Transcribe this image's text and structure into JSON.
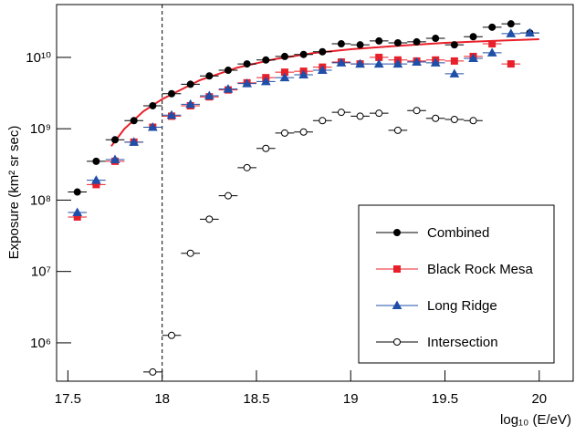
{
  "chart_data": {
    "type": "scatter",
    "y_label": "Exposure (km² sr sec)",
    "x_label": "log₁₀ (E/eV)",
    "xlim": [
      17.44,
      20.18
    ],
    "ylim": [
      290000,
      55000000000
    ],
    "log_y": true,
    "xticks": [
      {
        "value": 17.5,
        "label": "17.5"
      },
      18,
      {
        "value": 18.5,
        "label": "18.5"
      },
      19,
      {
        "value": 19.5,
        "label": "19.5"
      },
      20
    ],
    "yticks": [
      {
        "value": 1000000,
        "label": "10⁶"
      },
      {
        "value": 10000000,
        "label": "10⁷"
      },
      {
        "value": 100000000,
        "label": "10⁸"
      },
      {
        "value": 1000000000,
        "label": "10⁹"
      },
      {
        "value": 10000000000,
        "label": "10¹⁰"
      }
    ],
    "vline": 18,
    "xerr": 0.05,
    "series": [
      {
        "name": "Combined",
        "color": "#000000",
        "marker": "circle",
        "filled": true,
        "x": [
          17.55,
          17.65,
          17.75,
          17.85,
          17.95,
          18.05,
          18.15,
          18.25,
          18.35,
          18.45,
          18.55,
          18.65,
          18.75,
          18.85,
          18.95,
          19.05,
          19.15,
          19.25,
          19.35,
          19.45,
          19.55,
          19.65,
          19.75,
          19.85,
          19.95
        ],
        "values": [
          130000000,
          350000000,
          700000000,
          1300000000,
          2100000000,
          3100000000,
          4200000000,
          5500000000,
          6600000000,
          8100000000,
          9200000000,
          10300000000,
          11000000000,
          12000000000,
          15500000000,
          15000000000,
          17000000000,
          16000000000,
          16500000000,
          18500000000,
          15000000000,
          19500000000,
          26500000000,
          29500000000,
          22000000000
        ]
      },
      {
        "name": "Black Rock Mesa",
        "color": "#e8202a",
        "marker": "square",
        "filled": true,
        "x": [
          17.55,
          17.65,
          17.75,
          17.85,
          17.95,
          18.05,
          18.15,
          18.25,
          18.35,
          18.45,
          18.55,
          18.65,
          18.75,
          18.85,
          18.95,
          19.05,
          19.15,
          19.25,
          19.35,
          19.45,
          19.55,
          19.65,
          19.75,
          19.85
        ],
        "values": [
          58000000,
          165000000,
          350000000,
          650000000,
          1050000000,
          1500000000,
          2100000000,
          2800000000,
          3500000000,
          4400000000,
          5200000000,
          6200000000,
          6400000000,
          7300000000,
          8600000000,
          8100000000,
          10000000000,
          9200000000,
          8900000000,
          9200000000,
          8900000000,
          10300000000,
          15500000000,
          8100000000
        ]
      },
      {
        "name": "Long Ridge",
        "color": "#1f4fa8",
        "marker": "triangle",
        "filled": true,
        "x": [
          17.55,
          17.65,
          17.75,
          17.85,
          17.95,
          18.05,
          18.15,
          18.25,
          18.35,
          18.45,
          18.55,
          18.65,
          18.75,
          18.85,
          18.95,
          19.05,
          19.15,
          19.25,
          19.35,
          19.45,
          19.55,
          19.65,
          19.75,
          19.85,
          19.95
        ],
        "values": [
          67000000,
          190000000,
          370000000,
          650000000,
          1050000000,
          1550000000,
          2200000000,
          2900000000,
          3600000000,
          4300000000,
          4600000000,
          5200000000,
          5700000000,
          6600000000,
          8400000000,
          8100000000,
          8100000000,
          8100000000,
          8600000000,
          8400000000,
          5900000000,
          9700000000,
          11600000000,
          21500000000,
          22000000000
        ]
      },
      {
        "name": "Intersection",
        "color": "#000000",
        "marker": "circle",
        "filled": false,
        "x": [
          17.95,
          18.05,
          18.15,
          18.25,
          18.35,
          18.45,
          18.55,
          18.65,
          18.75,
          18.85,
          18.95,
          19.05,
          19.15,
          19.25,
          19.35,
          19.45,
          19.55,
          19.65
        ],
        "values": [
          390000,
          1270000,
          18000000,
          54000000,
          115000000,
          285000000,
          530000000,
          870000000,
          900000000,
          1300000000,
          1700000000,
          1500000000,
          1650000000,
          950000000,
          1800000000,
          1400000000,
          1350000000,
          1300000000
        ]
      }
    ],
    "fit": {
      "color": "#e8202a",
      "x": [
        17.73,
        17.8,
        17.9,
        18.0,
        18.2,
        18.4,
        18.6,
        18.8,
        19.0,
        19.25,
        19.5,
        19.75,
        20.0
      ],
      "values": [
        570000000,
        1000000000,
        1750000000,
        2600000000,
        4800000000,
        7200000000,
        9500000000,
        11500000000,
        13000000000,
        14500000000,
        16000000000,
        17000000000,
        18000000000
      ]
    }
  }
}
